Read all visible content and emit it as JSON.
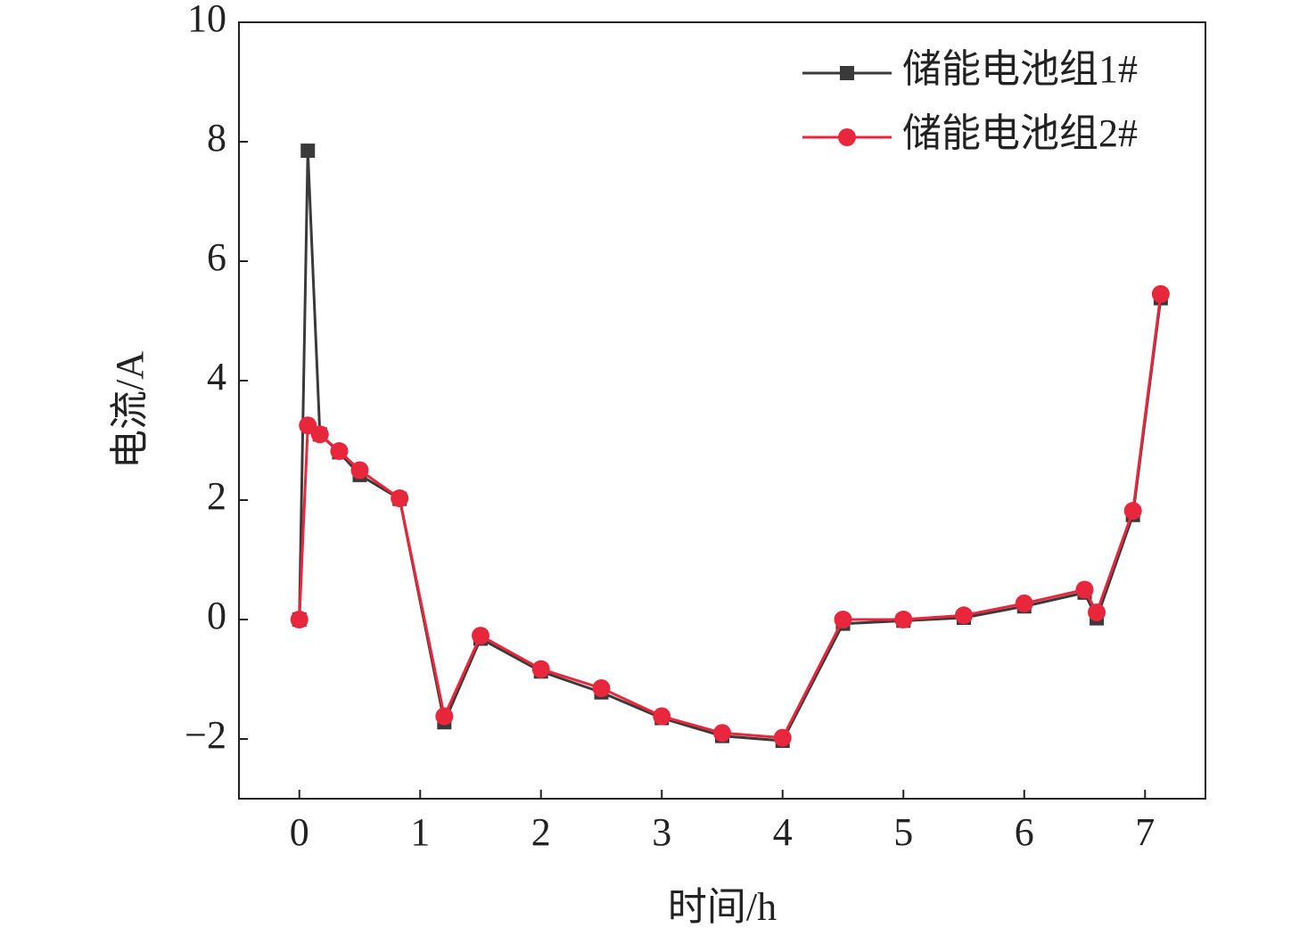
{
  "chart_data": {
    "type": "line",
    "x": [
      0,
      0.07,
      0.17,
      0.33,
      0.5,
      0.83,
      1.2,
      1.5,
      2,
      2.5,
      3,
      3.5,
      4,
      4.5,
      5,
      5.5,
      6,
      6.5,
      6.6,
      6.9,
      7.13
    ],
    "series": [
      {
        "name": "储能电池组1#",
        "color": "#3a3a3a",
        "marker": "square",
        "values": [
          0,
          7.85,
          3.1,
          2.8,
          2.42,
          2.02,
          -1.72,
          -0.32,
          -0.87,
          -1.22,
          -1.65,
          -1.95,
          -2.03,
          -0.07,
          -0.02,
          0.03,
          0.22,
          0.45,
          0.02,
          1.75,
          5.38
        ]
      },
      {
        "name": "储能电池组2#",
        "color": "#e8273d",
        "marker": "circle",
        "values": [
          0,
          3.25,
          3.1,
          2.82,
          2.5,
          2.03,
          -1.62,
          -0.27,
          -0.83,
          -1.15,
          -1.62,
          -1.9,
          -1.98,
          0.0,
          0.0,
          0.07,
          0.27,
          0.5,
          0.12,
          1.82,
          5.45
        ]
      }
    ],
    "x_label": "时间/h",
    "y_label": "电流/A",
    "xlim": [
      -0.5,
      7.5
    ],
    "xticks": [
      0,
      1,
      2,
      3,
      4,
      5,
      6,
      7
    ],
    "ylim": [
      -3,
      10
    ],
    "yticks": [
      {
        "value": -2,
        "label": "−2"
      },
      0,
      2,
      4,
      6,
      8,
      10
    ],
    "legend": "upper right"
  }
}
